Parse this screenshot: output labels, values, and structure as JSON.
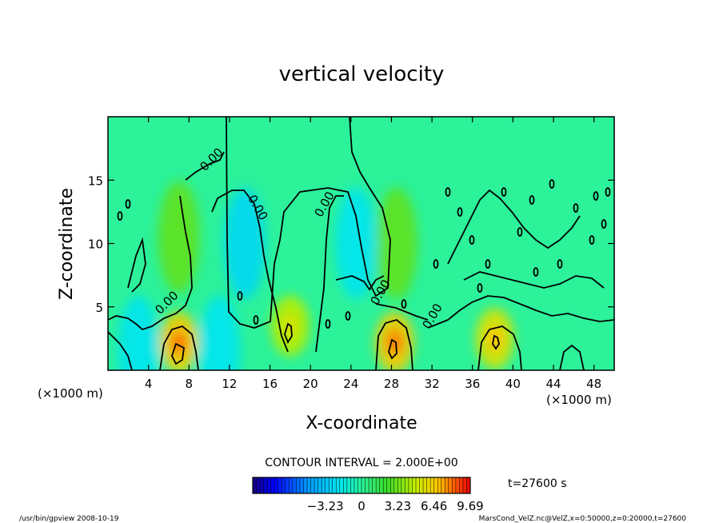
{
  "chart_data": {
    "type": "heatmap",
    "title": "vertical velocity",
    "xlabel": "X-coordinate",
    "ylabel": "Z-coordinate",
    "x_unit_left": "(×1000 m)",
    "x_unit_right": "(×1000 m)",
    "xlim": [
      0,
      50
    ],
    "ylim": [
      0,
      20
    ],
    "xticks": [
      "4",
      "8",
      "12",
      "16",
      "20",
      "24",
      "28",
      "32",
      "36",
      "40",
      "44",
      "48"
    ],
    "yticks": [
      "5",
      "10",
      "15"
    ],
    "xtick_values": [
      4,
      8,
      12,
      16,
      20,
      24,
      28,
      32,
      36,
      40,
      44,
      48
    ],
    "ytick_values": [
      5,
      10,
      15
    ],
    "contour_interval": "CONTOUR INTERVAL = 2.000E+00",
    "contour_labels": [
      "0.00",
      "0.00",
      "0.00",
      "0.00",
      "0.00",
      "0.00"
    ],
    "time_label": "t=27600 s",
    "colorbar": {
      "min": -9.69,
      "max": 9.69,
      "tick_labels": [
        "−3.23",
        "0",
        "3.23",
        "6.46",
        "9.69"
      ],
      "tick_values": [
        -3.23,
        0,
        3.23,
        6.46,
        9.69
      ]
    },
    "features": [
      {
        "kind": "updraft",
        "x": 7,
        "z": 2.2,
        "value": 6.5
      },
      {
        "kind": "updraft",
        "x": 18,
        "z": 3.5,
        "value": 4.5
      },
      {
        "kind": "updraft",
        "x": 28.3,
        "z": 2.2,
        "value": 6.5
      },
      {
        "kind": "updraft",
        "x": 38.2,
        "z": 2.5,
        "value": 5.5
      },
      {
        "kind": "updraft",
        "x": 7,
        "z": 10.5,
        "value": 3.0
      },
      {
        "kind": "updraft",
        "x": 28.5,
        "z": 10,
        "value": 3.0
      },
      {
        "kind": "downdraft",
        "x": 13.5,
        "z": 10,
        "value": -2.5
      },
      {
        "kind": "downdraft",
        "x": 24.5,
        "z": 10,
        "value": -2.0
      },
      {
        "kind": "downdraft",
        "x": 3,
        "z": 1.5,
        "value": -2.0
      },
      {
        "kind": "downdraft",
        "x": 11,
        "z": 1.5,
        "value": -2.0
      }
    ]
  },
  "footer": {
    "left": "/usr/bin/gpview  2008-10-19",
    "right": "MarsCond_VelZ.nc@VelZ,x=0:50000,z=0:20000,t=27600"
  },
  "colors": {
    "background_field": "#2cf29a",
    "contour": "#000000"
  }
}
